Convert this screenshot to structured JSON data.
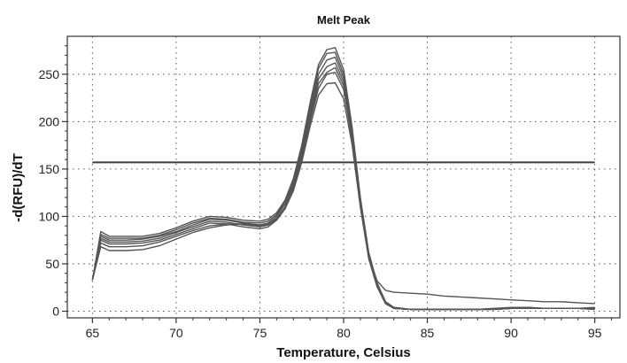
{
  "chart_data": {
    "type": "line",
    "title": "Melt Peak",
    "xlabel": "Temperature, Celsius",
    "ylabel": "-d(RFU)/dT",
    "xlim": [
      63.5,
      96.5
    ],
    "ylim": [
      -7,
      290
    ],
    "xticks": [
      65,
      70,
      75,
      80,
      85,
      90,
      95
    ],
    "yticks": [
      0,
      50,
      100,
      150,
      200,
      250
    ],
    "grid": true,
    "legend": "none",
    "colors": {
      "series": "#555555",
      "threshold": "#3c3c3c",
      "axis": "#333333",
      "grid": "#555555"
    },
    "threshold": 157,
    "x": [
      65,
      65.5,
      66,
      67,
      68,
      69,
      70,
      71,
      72,
      73,
      74,
      75,
      75.5,
      76,
      76.5,
      77,
      77.5,
      78,
      78.5,
      79,
      79.5,
      80,
      80.5,
      81,
      81.5,
      82,
      82.5,
      83,
      84,
      85,
      86,
      87,
      88,
      89,
      90,
      91,
      92,
      93,
      94,
      95
    ],
    "series": [
      {
        "values": [
          33,
          84,
          79,
          79,
          79,
          82,
          88,
          95,
          100,
          99,
          96,
          95,
          97,
          104,
          117,
          140,
          175,
          220,
          260,
          276,
          278,
          255,
          195,
          120,
          62,
          30,
          10,
          4,
          2,
          2,
          2,
          2,
          2,
          2,
          3,
          3,
          3,
          3,
          3,
          2
        ]
      },
      {
        "values": [
          33,
          81,
          77,
          77,
          77,
          80,
          86,
          93,
          98,
          97,
          94,
          93,
          95,
          102,
          115,
          138,
          172,
          216,
          256,
          272,
          273,
          250,
          192,
          118,
          60,
          29,
          10,
          4,
          2,
          2,
          2,
          2,
          2,
          3,
          4,
          4,
          3,
          3,
          3,
          2
        ]
      },
      {
        "values": [
          33,
          79,
          75,
          75,
          76,
          79,
          84,
          91,
          97,
          96,
          93,
          91,
          93,
          100,
          113,
          135,
          169,
          212,
          250,
          265,
          268,
          246,
          189,
          116,
          58,
          28,
          9,
          3,
          2,
          2,
          2,
          2,
          2,
          3,
          3,
          4,
          3,
          3,
          3,
          3
        ]
      },
      {
        "values": [
          33,
          77,
          73,
          73,
          74,
          77,
          83,
          89,
          95,
          94,
          91,
          89,
          91,
          98,
          110,
          132,
          165,
          208,
          245,
          258,
          262,
          242,
          186,
          114,
          57,
          27,
          9,
          3,
          2,
          2,
          2,
          2,
          2,
          2,
          3,
          3,
          3,
          3,
          3,
          3
        ]
      },
      {
        "values": [
          33,
          75,
          71,
          71,
          72,
          75,
          81,
          87,
          93,
          92,
          89,
          87,
          89,
          96,
          108,
          130,
          162,
          204,
          240,
          252,
          257,
          238,
          184,
          112,
          56,
          26,
          8,
          3,
          2,
          2,
          2,
          2,
          2,
          2,
          3,
          3,
          3,
          3,
          3,
          4
        ]
      },
      {
        "values": [
          33,
          72,
          68,
          68,
          69,
          73,
          79,
          85,
          90,
          92,
          92,
          90,
          91,
          97,
          108,
          128,
          160,
          200,
          235,
          250,
          252,
          234,
          182,
          110,
          55,
          26,
          8,
          3,
          2,
          2,
          2,
          2,
          2,
          2,
          3,
          3,
          3,
          3,
          3,
          3
        ]
      },
      {
        "values": [
          33,
          68,
          64,
          64,
          65,
          69,
          76,
          83,
          88,
          91,
          92,
          91,
          92,
          98,
          108,
          127,
          157,
          195,
          228,
          240,
          241,
          224,
          176,
          110,
          58,
          32,
          22,
          20,
          19,
          18,
          16,
          15,
          14,
          13,
          12,
          11,
          10,
          10,
          9,
          8
        ]
      }
    ]
  }
}
